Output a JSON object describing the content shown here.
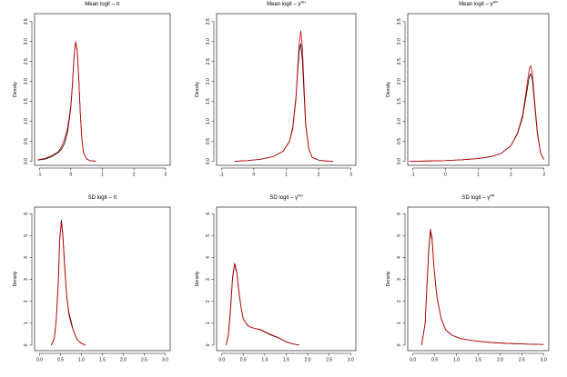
{
  "chart_data": [
    {
      "type": "line",
      "title": "Mean logit – π",
      "title_sup": "",
      "ylabel": "Density",
      "xlim": [
        -1.15,
        3.15
      ],
      "ylim": [
        -0.1,
        3.7
      ],
      "xticks": [
        -1,
        0,
        1,
        2,
        3
      ],
      "xtick_labels": [
        "-1",
        "0",
        "1",
        "2",
        "3"
      ],
      "yticks": [
        0,
        0.5,
        1,
        1.5,
        2,
        2.5,
        3,
        3.5
      ],
      "ytick_labels": [
        "0.0",
        "0.5",
        "1.0",
        "1.5",
        "2.0",
        "2.5",
        "3.0",
        "3.5"
      ],
      "series": [
        {
          "color": "#000000",
          "x": [
            -1.05,
            -0.8,
            -0.6,
            -0.4,
            -0.3,
            -0.2,
            -0.1,
            0.0,
            0.05,
            0.1,
            0.15,
            0.2,
            0.25,
            0.3,
            0.35,
            0.4,
            0.5,
            0.6,
            0.7,
            0.8
          ],
          "y": [
            0.03,
            0.06,
            0.12,
            0.22,
            0.3,
            0.45,
            0.75,
            1.35,
            1.9,
            2.6,
            2.98,
            2.8,
            2.1,
            1.2,
            0.55,
            0.22,
            0.06,
            0.02,
            0.01,
            0.0
          ]
        },
        {
          "color": "#cc0000",
          "x": [
            -1.05,
            -0.8,
            -0.6,
            -0.4,
            -0.3,
            -0.2,
            -0.1,
            0.0,
            0.05,
            0.1,
            0.15,
            0.2,
            0.25,
            0.3,
            0.35,
            0.4,
            0.5,
            0.6,
            0.7,
            0.8
          ],
          "y": [
            0.04,
            0.08,
            0.15,
            0.24,
            0.36,
            0.55,
            0.85,
            1.4,
            1.95,
            2.6,
            3.0,
            2.8,
            2.1,
            1.2,
            0.55,
            0.22,
            0.06,
            0.02,
            0.01,
            0.0
          ]
        }
      ]
    },
    {
      "type": "line",
      "title": "Mean logit – γ",
      "title_sup": "RH",
      "ylabel": "Density",
      "xlim": [
        -1.15,
        3.15
      ],
      "ylim": [
        -0.1,
        3.7
      ],
      "xticks": [
        -1,
        0,
        1,
        2,
        3
      ],
      "xtick_labels": [
        "-1",
        "0",
        "1",
        "2",
        "3"
      ],
      "yticks": [
        0,
        0.5,
        1,
        1.5,
        2,
        2.5,
        3,
        3.5
      ],
      "ytick_labels": [
        "0.0",
        "0.5",
        "1.0",
        "1.5",
        "2.0",
        "2.5",
        "3.0",
        "3.5"
      ],
      "series": [
        {
          "color": "#000000",
          "x": [
            -0.6,
            -0.2,
            0.2,
            0.6,
            0.9,
            1.1,
            1.2,
            1.3,
            1.35,
            1.4,
            1.45,
            1.5,
            1.55,
            1.6,
            1.7,
            1.8,
            2.0,
            2.2,
            2.45
          ],
          "y": [
            0.0,
            0.02,
            0.05,
            0.12,
            0.25,
            0.5,
            0.85,
            1.6,
            2.2,
            2.75,
            2.95,
            2.55,
            1.7,
            0.9,
            0.3,
            0.1,
            0.03,
            0.01,
            0.0
          ]
        },
        {
          "color": "#cc0000",
          "x": [
            -0.6,
            -0.2,
            0.2,
            0.6,
            0.9,
            1.1,
            1.2,
            1.3,
            1.35,
            1.4,
            1.45,
            1.5,
            1.55,
            1.6,
            1.7,
            1.8,
            2.0,
            2.2,
            2.45
          ],
          "y": [
            0.0,
            0.02,
            0.05,
            0.12,
            0.25,
            0.5,
            0.8,
            1.55,
            2.3,
            2.95,
            3.27,
            2.85,
            1.9,
            0.95,
            0.3,
            0.1,
            0.03,
            0.01,
            0.0
          ]
        }
      ]
    },
    {
      "type": "line",
      "title": "Mean logit – γ",
      "title_sup": "AR",
      "ylabel": "Density",
      "xlim": [
        -1.15,
        3.15
      ],
      "ylim": [
        -0.1,
        3.7
      ],
      "xticks": [
        -1,
        0,
        1,
        2,
        3
      ],
      "xtick_labels": [
        "-1",
        "0",
        "1",
        "2",
        "3"
      ],
      "yticks": [
        0,
        0.5,
        1,
        1.5,
        2,
        2.5,
        3,
        3.5
      ],
      "ytick_labels": [
        "0.0",
        "0.5",
        "1.0",
        "1.5",
        "2.0",
        "2.5",
        "3.0",
        "3.5"
      ],
      "series": [
        {
          "color": "#000000",
          "x": [
            -1.1,
            -0.5,
            0.0,
            0.5,
            1.0,
            1.4,
            1.7,
            2.0,
            2.2,
            2.35,
            2.45,
            2.55,
            2.6,
            2.65,
            2.7,
            2.8,
            2.9,
            3.0
          ],
          "y": [
            0.0,
            0.01,
            0.02,
            0.04,
            0.07,
            0.12,
            0.2,
            0.4,
            0.7,
            1.1,
            1.6,
            2.1,
            2.2,
            2.05,
            1.6,
            0.7,
            0.2,
            0.05
          ]
        },
        {
          "color": "#cc0000",
          "x": [
            -1.1,
            -0.5,
            0.0,
            0.5,
            1.0,
            1.4,
            1.7,
            2.0,
            2.2,
            2.35,
            2.45,
            2.55,
            2.6,
            2.65,
            2.7,
            2.8,
            2.9,
            3.0
          ],
          "y": [
            0.0,
            0.01,
            0.02,
            0.04,
            0.07,
            0.12,
            0.2,
            0.4,
            0.72,
            1.15,
            1.7,
            2.3,
            2.4,
            2.2,
            1.7,
            0.75,
            0.2,
            0.05
          ]
        }
      ]
    },
    {
      "type": "line",
      "title": "SD logit – π",
      "title_sup": "",
      "ylabel": "Density",
      "xlim": [
        -0.12,
        3.12
      ],
      "ylim": [
        -0.25,
        6.3
      ],
      "xticks": [
        0,
        0.5,
        1,
        1.5,
        2,
        2.5,
        3
      ],
      "xtick_labels": [
        "0.0",
        "0.5",
        "1.0",
        "1.5",
        "2.0",
        "2.5",
        "3.0"
      ],
      "yticks": [
        0,
        1,
        2,
        3,
        4,
        5,
        6
      ],
      "ytick_labels": [
        "0",
        "1",
        "2",
        "3",
        "4",
        "5",
        "6"
      ],
      "series": [
        {
          "color": "#000000",
          "x": [
            0.28,
            0.35,
            0.4,
            0.45,
            0.48,
            0.52,
            0.55,
            0.6,
            0.65,
            0.7,
            0.75,
            0.8,
            0.9,
            1.0,
            1.1
          ],
          "y": [
            0.0,
            0.3,
            1.2,
            3.0,
            4.8,
            5.7,
            5.2,
            3.6,
            2.2,
            1.5,
            1.1,
            0.7,
            0.25,
            0.08,
            0.0
          ]
        },
        {
          "color": "#cc0000",
          "x": [
            0.28,
            0.35,
            0.4,
            0.45,
            0.48,
            0.52,
            0.55,
            0.6,
            0.65,
            0.7,
            0.75,
            0.8,
            0.9,
            1.0,
            1.1
          ],
          "y": [
            0.0,
            0.3,
            1.2,
            3.1,
            4.9,
            5.6,
            5.1,
            3.5,
            2.2,
            1.4,
            1.0,
            0.7,
            0.25,
            0.08,
            0.0
          ]
        }
      ]
    },
    {
      "type": "line",
      "title": "SD logit – γ",
      "title_sup": "RH",
      "ylabel": "Density",
      "xlim": [
        -0.12,
        3.12
      ],
      "ylim": [
        -0.25,
        6.3
      ],
      "xticks": [
        0,
        0.5,
        1,
        1.5,
        2,
        2.5,
        3
      ],
      "xtick_labels": [
        "0.0",
        "0.5",
        "1.0",
        "1.5",
        "2.0",
        "2.5",
        "3.0"
      ],
      "yticks": [
        0,
        1,
        2,
        3,
        4,
        5,
        6
      ],
      "ytick_labels": [
        "0",
        "1",
        "2",
        "3",
        "4",
        "5",
        "6"
      ],
      "series": [
        {
          "color": "#000000",
          "x": [
            0.1,
            0.15,
            0.2,
            0.25,
            0.3,
            0.35,
            0.4,
            0.45,
            0.5,
            0.6,
            0.7,
            0.8,
            0.9,
            1.0,
            1.1,
            1.2,
            1.3,
            1.4,
            1.5,
            1.6,
            1.7,
            1.8
          ],
          "y": [
            0.0,
            0.4,
            1.5,
            3.0,
            3.7,
            3.3,
            2.4,
            1.7,
            1.2,
            0.9,
            0.8,
            0.75,
            0.7,
            0.6,
            0.5,
            0.42,
            0.35,
            0.25,
            0.15,
            0.08,
            0.04,
            0.01
          ]
        },
        {
          "color": "#cc0000",
          "x": [
            0.1,
            0.15,
            0.2,
            0.25,
            0.3,
            0.35,
            0.4,
            0.45,
            0.5,
            0.6,
            0.7,
            0.8,
            0.9,
            1.0,
            1.1,
            1.2,
            1.3,
            1.4,
            1.5,
            1.6,
            1.7,
            1.8
          ],
          "y": [
            0.0,
            0.45,
            1.6,
            3.1,
            3.75,
            3.35,
            2.45,
            1.7,
            1.2,
            0.9,
            0.8,
            0.75,
            0.72,
            0.62,
            0.52,
            0.44,
            0.36,
            0.26,
            0.16,
            0.09,
            0.04,
            0.01
          ]
        }
      ]
    },
    {
      "type": "line",
      "title": "SD logit – γ",
      "title_sup": "AR",
      "ylabel": "Density",
      "xlim": [
        -0.12,
        3.12
      ],
      "ylim": [
        -0.25,
        6.3
      ],
      "xticks": [
        0,
        0.5,
        1,
        1.5,
        2,
        2.5,
        3
      ],
      "xtick_labels": [
        "0.0",
        "0.5",
        "1.0",
        "1.5",
        "2.0",
        "2.5",
        "3.0"
      ],
      "yticks": [
        0,
        1,
        2,
        3,
        4,
        5,
        6
      ],
      "ytick_labels": [
        "0",
        "1",
        "2",
        "3",
        "4",
        "5",
        "6"
      ],
      "series": [
        {
          "color": "#000000",
          "x": [
            0.2,
            0.28,
            0.32,
            0.36,
            0.4,
            0.44,
            0.48,
            0.55,
            0.65,
            0.75,
            0.9,
            1.1,
            1.4,
            1.8,
            2.2,
            2.6,
            3.0
          ],
          "y": [
            0.0,
            1.0,
            2.6,
            4.2,
            5.2,
            4.8,
            3.6,
            2.2,
            1.2,
            0.7,
            0.45,
            0.3,
            0.2,
            0.12,
            0.08,
            0.05,
            0.03
          ]
        },
        {
          "color": "#cc0000",
          "x": [
            0.2,
            0.28,
            0.32,
            0.36,
            0.4,
            0.44,
            0.48,
            0.55,
            0.65,
            0.75,
            0.9,
            1.1,
            1.4,
            1.8,
            2.2,
            2.6,
            3.0
          ],
          "y": [
            0.0,
            1.0,
            2.7,
            4.3,
            5.3,
            4.9,
            3.6,
            2.2,
            1.2,
            0.7,
            0.45,
            0.3,
            0.2,
            0.12,
            0.08,
            0.05,
            0.03
          ]
        }
      ]
    }
  ]
}
